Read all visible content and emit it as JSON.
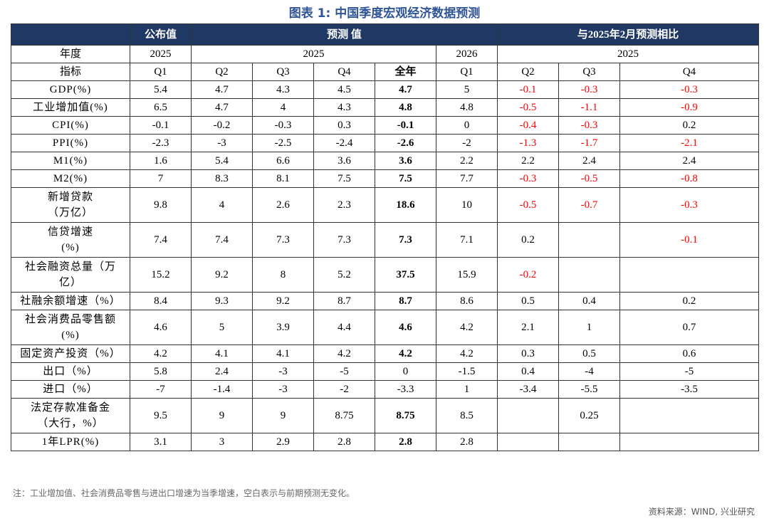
{
  "title": "图表 1:   中国季度宏观经济数据预测",
  "table": {
    "group_header": {
      "published": "公布值",
      "forecast": "预测 值",
      "comparison": "与2025年2月预测相比"
    },
    "year_row": {
      "label": "年度",
      "years": [
        "2025",
        "2025",
        "2026",
        "2025"
      ]
    },
    "quarter_row": {
      "label": "指标",
      "quarters": [
        "Q1",
        "Q2",
        "Q3",
        "Q4",
        "全年",
        "Q1",
        "Q2",
        "Q3",
        "Q4"
      ]
    },
    "rows": [
      {
        "label": [
          "GDP(%)"
        ],
        "values": [
          5.4,
          4.7,
          4.3,
          4.5,
          4.7,
          5,
          -0.1,
          -0.3,
          -0.3
        ],
        "red_negatives": true,
        "bold_full_year": true
      },
      {
        "label": [
          "工业增加值(%)"
        ],
        "values": [
          6.5,
          4.7,
          4,
          4.3,
          4.8,
          4.8,
          -0.5,
          -1.1,
          -0.9
        ],
        "red_negatives": true,
        "bold_full_year": true
      },
      {
        "label": [
          "CPI(%)"
        ],
        "values": [
          -0.1,
          -0.2,
          -0.3,
          0.3,
          -0.1,
          0,
          -0.4,
          -0.3,
          0.2
        ],
        "red_negatives": true,
        "bold_full_year": true
      },
      {
        "label": [
          "PPI(%)"
        ],
        "values": [
          -2.3,
          -3,
          -2.5,
          -2.4,
          -2.6,
          -2,
          -1.3,
          -1.7,
          -2.1
        ],
        "red_negatives": true,
        "bold_full_year": true
      },
      {
        "label": [
          "M1(%)"
        ],
        "values": [
          1.6,
          5.4,
          6.6,
          3.6,
          3.6,
          2.2,
          2.2,
          2.4,
          2.4
        ],
        "red_negatives": true,
        "bold_full_year": true
      },
      {
        "label": [
          "M2(%)"
        ],
        "values": [
          7,
          8.3,
          8.1,
          7.5,
          7.5,
          7.7,
          -0.3,
          -0.5,
          -0.8
        ],
        "red_negatives": true,
        "bold_full_year": true
      },
      {
        "label": [
          "新增贷款",
          "（万亿）"
        ],
        "values": [
          9.8,
          4,
          2.6,
          2.3,
          18.6,
          10,
          -0.5,
          -0.7,
          -0.3
        ],
        "red_negatives": true,
        "bold_full_year": true
      },
      {
        "label": [
          "信贷增速",
          "(%)"
        ],
        "values": [
          7.4,
          7.4,
          7.3,
          7.3,
          7.3,
          7.1,
          0.2,
          null,
          -0.1
        ],
        "red_negatives": true,
        "bold_full_year": true
      },
      {
        "label": [
          "社会融资总量（万",
          "亿）"
        ],
        "values": [
          15.2,
          9.2,
          8,
          5.2,
          37.5,
          15.9,
          -0.2,
          null,
          null
        ],
        "red_negatives": true,
        "bold_full_year": true
      },
      {
        "label": [
          "社融余额增速（%）"
        ],
        "values": [
          8.4,
          9.3,
          9.2,
          8.7,
          8.7,
          8.6,
          0.5,
          0.4,
          0.2
        ],
        "red_negatives": true,
        "bold_full_year": true
      },
      {
        "label": [
          "社会消费品零售额",
          "(%)"
        ],
        "values": [
          4.6,
          5,
          3.9,
          4.4,
          4.6,
          4.2,
          2.1,
          1,
          0.7
        ],
        "red_negatives": true,
        "bold_full_year": true
      },
      {
        "label": [
          "固定资产投资（%）"
        ],
        "values": [
          4.2,
          4.1,
          4.1,
          4.2,
          4.2,
          4.2,
          0.3,
          0.5,
          0.6
        ],
        "red_negatives": true,
        "bold_full_year": true
      },
      {
        "label": [
          "出口（%）"
        ],
        "values": [
          5.8,
          2.4,
          -3,
          -5,
          0,
          -1.5,
          0.4,
          -4,
          -5
        ],
        "red_negatives": false,
        "bold_full_year": false
      },
      {
        "label": [
          "进口（%）"
        ],
        "values": [
          -7,
          -1.4,
          -3,
          -2,
          -3.3,
          1,
          -3.4,
          -5.5,
          -3.5
        ],
        "red_negatives": false,
        "bold_full_year": false
      },
      {
        "label": [
          "法定存款准备金",
          "（大行，%）"
        ],
        "values": [
          9.5,
          9,
          9,
          8.75,
          8.75,
          8.5,
          null,
          0.25,
          null
        ],
        "red_negatives": true,
        "bold_full_year": true
      },
      {
        "label": [
          "1年LPR(%)"
        ],
        "values": [
          3.1,
          3,
          2.9,
          2.8,
          2.8,
          2.8,
          null,
          null,
          null
        ],
        "red_negatives": true,
        "bold_full_year": true
      }
    ]
  },
  "note": "注：工业增加值、社会消费品零售与进出口增速为当季增速，空白表示与前期预测无变化。",
  "source": "资料来源：WIND, 兴业研究"
}
